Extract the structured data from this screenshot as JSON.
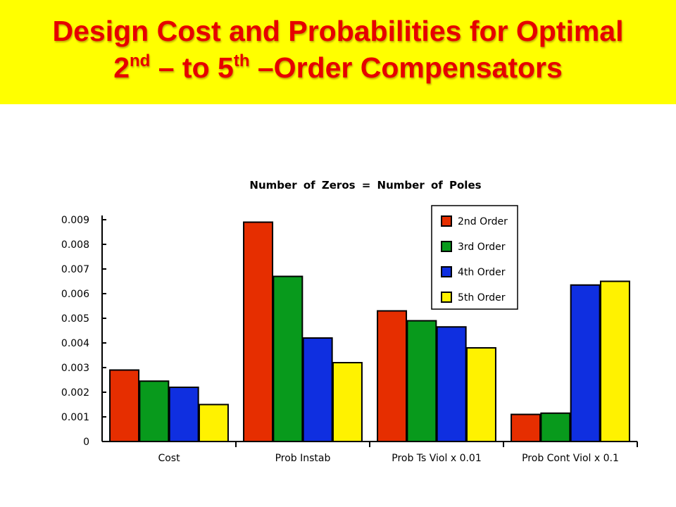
{
  "header": {
    "title_line1": "Design Cost and Probabilities for Optimal",
    "title_line2": {
      "part1": "2",
      "sup1": "nd",
      "part2": " – to 5",
      "sup2": "th",
      "part3": " –Order Compensators"
    }
  },
  "colors": {
    "banner": "#ffff00",
    "title": "#e60000"
  },
  "chart_data": {
    "type": "bar",
    "title": "Number of Zeros = Number of Poles",
    "xlabel": "",
    "ylabel": "",
    "ylim": [
      0,
      0.009
    ],
    "yticks": [
      "0",
      "0.001",
      "0.002",
      "0.003",
      "0.004",
      "0.005",
      "0.006",
      "0.007",
      "0.008",
      "0.009"
    ],
    "categories": [
      "Cost",
      "Prob Instab",
      "Prob Ts Viol x 0.01",
      "Prob Cont Viol x 0.1"
    ],
    "series": [
      {
        "name": "2nd Order",
        "color": "#e62e00",
        "values": [
          0.0029,
          0.0089,
          0.0053,
          0.0011
        ]
      },
      {
        "name": "3rd Order",
        "color": "#089a1c",
        "values": [
          0.00245,
          0.0067,
          0.0049,
          0.00115
        ]
      },
      {
        "name": "4th Order",
        "color": "#0f2fe0",
        "values": [
          0.0022,
          0.0042,
          0.00465,
          0.00635
        ]
      },
      {
        "name": "5th Order",
        "color": "#fff200",
        "values": [
          0.0015,
          0.0032,
          0.0038,
          0.0065
        ]
      }
    ],
    "grid": false,
    "legend_position": "top-right"
  }
}
